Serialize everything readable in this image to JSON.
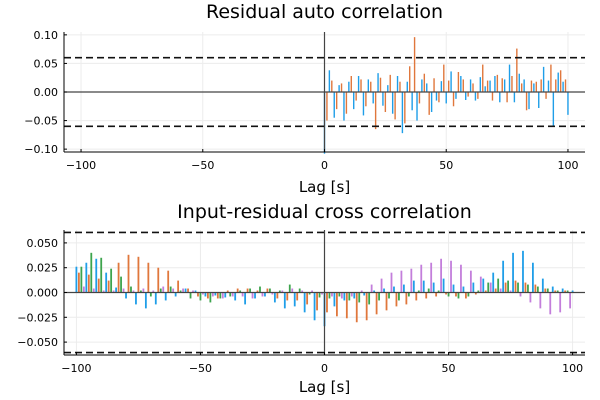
{
  "chart_data": [
    {
      "type": "bar",
      "title": "Residual auto correlation",
      "xlabel": "Lag [s]",
      "ylabel": "",
      "xlim": [
        -107,
        107
      ],
      "ylim": [
        -0.105,
        0.105
      ],
      "xticks": [
        {
          "value": -100,
          "label": "−100"
        },
        {
          "value": -50,
          "label": "−50"
        },
        {
          "value": 0,
          "label": "0"
        },
        {
          "value": 50,
          "label": "50"
        },
        {
          "value": 100,
          "label": "100"
        }
      ],
      "yticks": [
        {
          "value": 0.1,
          "label": "0.10"
        },
        {
          "value": 0.05,
          "label": "0.05"
        },
        {
          "value": 0,
          "label": "0.00"
        },
        {
          "value": -0.05,
          "label": "−0.05"
        },
        {
          "value": -0.1,
          "label": "−0.10"
        }
      ],
      "confidence_bounds": [
        0.06,
        -0.06
      ],
      "grid": true,
      "legend": "none",
      "series": [
        {
          "color": "#1f9ee8",
          "x": [
            0,
            2,
            4,
            6,
            8,
            10,
            12,
            14,
            16,
            18,
            20,
            22,
            24,
            26,
            28,
            30,
            32,
            34,
            36,
            38,
            40,
            42,
            44,
            46,
            48,
            50,
            52,
            54,
            56,
            58,
            60,
            62,
            64,
            66,
            68,
            70,
            72,
            74,
            76,
            78,
            80,
            82,
            84,
            86,
            88,
            90,
            92,
            94,
            96,
            98,
            100
          ],
          "values": [
            -0.108,
            0.038,
            -0.045,
            0.012,
            -0.05,
            0.018,
            -0.03,
            0.028,
            -0.041,
            0.022,
            -0.02,
            0.033,
            -0.024,
            0.012,
            -0.038,
            0.028,
            -0.072,
            0.018,
            -0.032,
            -0.05,
            0.022,
            0.015,
            -0.035,
            -0.015,
            0.019,
            -0.02,
            0.036,
            -0.012,
            0.028,
            -0.014,
            0.022,
            -0.015,
            0.026,
            0.01,
            0.02,
            0.028,
            -0.018,
            0.022,
            0.048,
            -0.018,
            0.032,
            0.022,
            -0.03,
            0.015,
            -0.028,
            0.044,
            0.02,
            -0.06,
            0.034,
            0.018,
            -0.04
          ]
        },
        {
          "color": "#e0773c",
          "x": [
            1,
            3,
            5,
            7,
            9,
            11,
            13,
            15,
            17,
            19,
            21,
            23,
            25,
            27,
            29,
            31,
            33,
            35,
            37,
            39,
            41,
            43,
            45,
            47,
            49,
            51,
            53,
            55,
            57,
            59,
            61,
            63,
            65,
            67,
            69,
            71,
            73,
            75,
            77,
            79,
            81,
            83,
            85,
            87,
            89,
            91,
            93,
            95,
            97,
            99
          ],
          "values": [
            -0.05,
            0.02,
            -0.03,
            0.015,
            -0.038,
            0.028,
            -0.015,
            0.022,
            -0.025,
            0.018,
            -0.065,
            0.025,
            -0.035,
            0.03,
            -0.048,
            0.018,
            -0.055,
            0.045,
            0.096,
            -0.02,
            0.032,
            -0.04,
            0.024,
            -0.018,
            0.048,
            0.02,
            -0.025,
            0.035,
            0.022,
            -0.008,
            0.015,
            -0.012,
            0.048,
            0.02,
            -0.015,
            0.03,
            0.024,
            -0.018,
            0.028,
            0.076,
            0.015,
            -0.032,
            0.02,
            0.018,
            0.022,
            -0.012,
            0.048,
            0.022,
            0.038,
            0.022
          ]
        }
      ]
    },
    {
      "type": "bar",
      "title": "Input-residual cross correlation",
      "xlabel": "Lag [s]",
      "ylabel": "",
      "xlim": [
        -105,
        105
      ],
      "ylim": [
        -0.063,
        0.063
      ],
      "xticks": [
        {
          "value": -100,
          "label": "−100"
        },
        {
          "value": -50,
          "label": "−50"
        },
        {
          "value": 0,
          "label": "0"
        },
        {
          "value": 50,
          "label": "50"
        },
        {
          "value": 100,
          "label": "100"
        }
      ],
      "yticks": [
        {
          "value": 0.05,
          "label": "0.050"
        },
        {
          "value": 0.025,
          "label": "0.025"
        },
        {
          "value": 0,
          "label": "0.000"
        },
        {
          "value": -0.025,
          "label": "−0.025"
        },
        {
          "value": -0.05,
          "label": "−0.050"
        }
      ],
      "confidence_bounds": [
        0.0605,
        -0.0605
      ],
      "grid": true,
      "legend": "none",
      "series": [
        {
          "color": "#1f9ee8",
          "x": [
            -100,
            -96,
            -92,
            -88,
            -84,
            -80,
            -76,
            -72,
            -68,
            -64,
            -60,
            -56,
            -52,
            -48,
            -44,
            -40,
            -36,
            -32,
            -28,
            -24,
            -20,
            -16,
            -12,
            -8,
            -4,
            0,
            4,
            8,
            12,
            16,
            20,
            24,
            28,
            32,
            36,
            40,
            44,
            48,
            52,
            56,
            60,
            64,
            68,
            72,
            76,
            80,
            84,
            88,
            92,
            96,
            100
          ],
          "values": [
            0.026,
            0.03,
            0.034,
            0.02,
            0.005,
            -0.006,
            -0.012,
            -0.016,
            -0.012,
            -0.008,
            -0.004,
            0.004,
            0.002,
            -0.004,
            -0.003,
            -0.005,
            -0.008,
            -0.012,
            -0.006,
            -0.004,
            -0.01,
            -0.016,
            -0.014,
            -0.02,
            -0.028,
            -0.034,
            -0.014,
            -0.008,
            -0.006,
            -0.003,
            0.002,
            0.004,
            0.006,
            0.008,
            0.012,
            0.012,
            0.01,
            0.014,
            0.008,
            0.006,
            0.01,
            0.014,
            0.02,
            0.032,
            0.04,
            0.042,
            0.03,
            0.014,
            0.006,
            0.004,
            0.002
          ]
        },
        {
          "color": "#e0773c",
          "x": [
            -99,
            -95,
            -91,
            -87,
            -83,
            -79,
            -75,
            -71,
            -67,
            -63,
            -59,
            -55,
            -51,
            -47,
            -43,
            -39,
            -35,
            -31,
            -27,
            -23,
            -19,
            -15,
            -11,
            -7,
            -3,
            1,
            5,
            9,
            13,
            17,
            21,
            25,
            29,
            33,
            37,
            41,
            45,
            49,
            53,
            57,
            61,
            65,
            69,
            73,
            77,
            81,
            85,
            89,
            93,
            97
          ],
          "values": [
            0.02,
            0.018,
            0.014,
            0.012,
            0.03,
            0.038,
            0.036,
            0.03,
            0.025,
            0.022,
            0.012,
            0.004,
            -0.004,
            -0.006,
            -0.006,
            0.002,
            0.004,
            0.004,
            0.002,
            0.004,
            -0.006,
            -0.008,
            -0.008,
            -0.012,
            -0.018,
            -0.02,
            -0.024,
            -0.026,
            -0.03,
            -0.028,
            -0.022,
            -0.018,
            -0.014,
            -0.012,
            -0.008,
            -0.006,
            -0.004,
            -0.002,
            -0.004,
            -0.006,
            -0.002,
            0.002,
            0.004,
            0.01,
            0.012,
            0.01,
            0.008,
            0.004,
            0.002,
            0.002
          ]
        },
        {
          "color": "#3da44d",
          "x": [
            -98,
            -94,
            -90,
            -86,
            -82,
            -78,
            -74,
            -70,
            -66,
            -62,
            -58,
            -54,
            -50,
            -46,
            -42,
            -38,
            -34,
            -30,
            -26,
            -22,
            -18,
            -14,
            -10,
            -6,
            -2,
            2,
            6,
            10,
            14,
            18,
            22,
            26,
            30,
            34,
            38,
            42,
            46,
            50,
            54,
            58,
            62,
            66,
            70,
            74,
            78,
            82,
            86,
            90,
            94,
            98
          ],
          "values": [
            0.026,
            0.04,
            0.035,
            0.024,
            0.016,
            0.006,
            0.002,
            -0.004,
            0.004,
            0.006,
            0.002,
            -0.006,
            -0.008,
            -0.01,
            -0.006,
            -0.004,
            0.002,
            0.004,
            0.006,
            0.004,
            0.002,
            0.008,
            0.004,
            -0.002,
            -0.005,
            -0.006,
            -0.004,
            -0.008,
            -0.01,
            -0.012,
            -0.008,
            -0.006,
            -0.008,
            -0.004,
            0.002,
            0.004,
            0.002,
            -0.004,
            -0.006,
            -0.004,
            0.002,
            0.01,
            0.014,
            0.012,
            0.01,
            0.008,
            0.006,
            0.004,
            0.002,
            0.002
          ]
        },
        {
          "color": "#c37edb",
          "x": [
            -97,
            -93,
            -89,
            -85,
            -81,
            -77,
            -73,
            -69,
            -65,
            -61,
            -57,
            -53,
            -49,
            -45,
            -41,
            -37,
            -33,
            -29,
            -25,
            -21,
            -17,
            -13,
            -9,
            -5,
            -1,
            3,
            7,
            11,
            15,
            19,
            23,
            27,
            31,
            35,
            39,
            43,
            47,
            51,
            55,
            59,
            63,
            67,
            71,
            75,
            79,
            83,
            87,
            91,
            95,
            99
          ],
          "values": [
            0.006,
            0.004,
            0.002,
            0.002,
            0.004,
            0.002,
            0.004,
            0.002,
            0.006,
            0.004,
            0.004,
            0.002,
            -0.002,
            -0.004,
            -0.006,
            -0.004,
            -0.004,
            -0.006,
            -0.004,
            -0.002,
            0.002,
            0.004,
            0.002,
            0.002,
            -0.002,
            -0.004,
            -0.006,
            -0.004,
            0.002,
            0.008,
            0.014,
            0.02,
            0.022,
            0.024,
            0.028,
            0.03,
            0.034,
            0.032,
            0.028,
            0.022,
            0.016,
            0.01,
            0.004,
            0.002,
            -0.004,
            -0.01,
            -0.016,
            -0.022,
            -0.02,
            -0.016
          ]
        }
      ]
    }
  ]
}
